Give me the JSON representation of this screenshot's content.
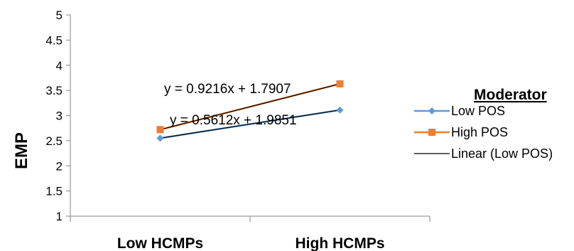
{
  "chart_data": {
    "type": "line",
    "categories": [
      "Low HCMPs",
      "High HCMPs"
    ],
    "ylabel": "EMP",
    "ylim": [
      1,
      5
    ],
    "yticks": [
      "1",
      "1.5",
      "2",
      "2.5",
      "3",
      "3.5",
      "4",
      "4.5",
      "5"
    ],
    "grid": false,
    "legend_title": "Moderator",
    "legend_position": "right",
    "series": [
      {
        "name": "Low POS",
        "values": [
          2.55,
          3.11
        ],
        "color": "#5B9BD5",
        "marker": "diamond"
      },
      {
        "name": "High POS",
        "values": [
          2.72,
          3.63
        ],
        "color": "#ED7D31",
        "marker": "square"
      }
    ],
    "trendlines": [
      {
        "name": "Linear (Low POS)",
        "values": [
          2.55,
          3.11
        ],
        "color": "#000000"
      },
      {
        "name": "",
        "values": [
          2.72,
          3.63
        ],
        "color": "#000000"
      }
    ],
    "annotations": [
      "y = 0.9216x + 1.7907",
      "y = 0.5612x + 1.9851"
    ]
  }
}
